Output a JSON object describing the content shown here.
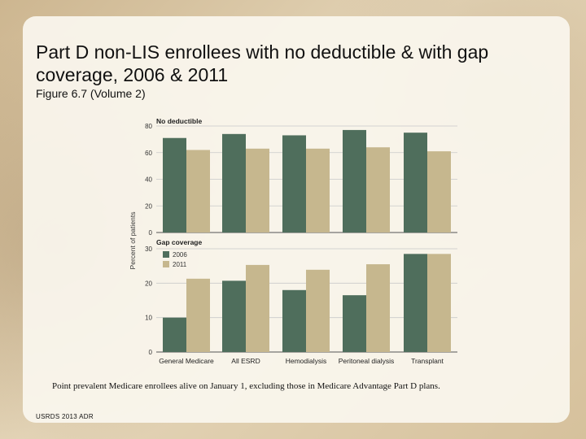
{
  "title": "Part D non-LIS enrollees with no deductible & with gap coverage, 2006 & 2011",
  "subtitle": "Figure 6.7 (Volume 2)",
  "footnote": "Point prevalent Medicare enrollees alive on January 1, excluding those in Medicare Advantage Part D plans.",
  "source": "USRDS 2013 ADR",
  "colors": {
    "series_2006": "#4f6e5c",
    "series_2011": "#c6b78e",
    "axis": "#555555",
    "grid": "#c9c9c9"
  },
  "chart_data": [
    {
      "type": "bar",
      "title": "No deductible",
      "ylabel": "Percent of patients",
      "ylim": [
        0,
        80
      ],
      "yticks": [
        0,
        20,
        40,
        60,
        80
      ],
      "categories": [
        "General Medicare",
        "All ESRD",
        "Hemodialysis",
        "Peritoneal dialysis",
        "Transplant"
      ],
      "series": [
        {
          "name": "2006",
          "values": [
            71,
            74,
            73,
            77,
            75
          ]
        },
        {
          "name": "2011",
          "values": [
            62,
            63,
            63,
            64,
            61
          ]
        }
      ]
    },
    {
      "type": "bar",
      "title": "Gap coverage",
      "ylabel": "Percent of patients",
      "ylim": [
        0,
        30
      ],
      "yticks": [
        0,
        10,
        20,
        30
      ],
      "legend": [
        "2006",
        "2011"
      ],
      "legend_position": "top-left",
      "categories": [
        "General Medicare",
        "All ESRD",
        "Hemodialysis",
        "Peritoneal dialysis",
        "Transplant"
      ],
      "series": [
        {
          "name": "2006",
          "values": [
            10,
            20.7,
            18,
            16.5,
            28.5
          ]
        },
        {
          "name": "2011",
          "values": [
            21.3,
            25.3,
            23.9,
            25.5,
            28.5
          ]
        }
      ]
    }
  ]
}
